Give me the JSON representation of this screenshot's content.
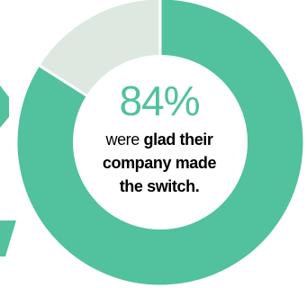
{
  "chart_data": {
    "type": "pie",
    "style": "donut",
    "slices": [
      {
        "value": 84,
        "color": "#52c19d"
      },
      {
        "value": 16,
        "color": "#dce8e0"
      }
    ],
    "center_value": "84%",
    "caption_parts": {
      "plain": "were ",
      "bold_line1": "glad their",
      "bold_line2": "company made",
      "bold_line3": "the switch."
    }
  },
  "colors": {
    "accent": "#52c19d",
    "remainder": "#dce8e0",
    "background": "#ffffff"
  }
}
